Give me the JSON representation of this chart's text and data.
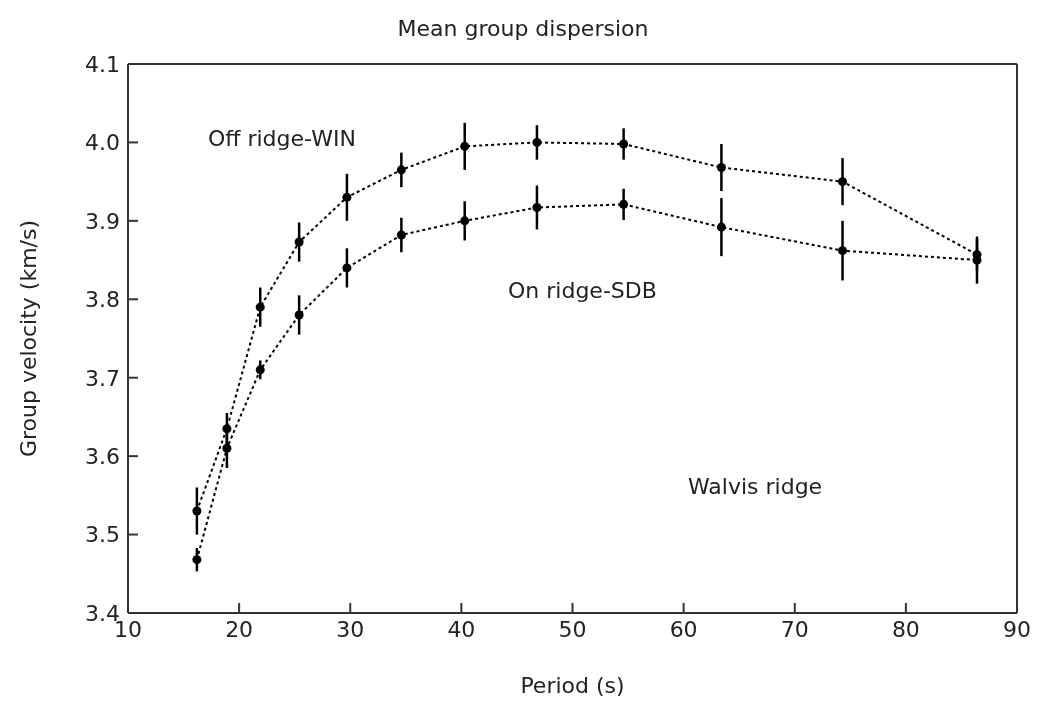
{
  "chart_data": {
    "type": "line",
    "title": "Mean group dispersion",
    "xlabel": "Period (s)",
    "ylabel": "Group velocity (km/s)",
    "xlim": [
      10,
      90
    ],
    "xticks": [
      10,
      20,
      30,
      40,
      50,
      60,
      70,
      80,
      90
    ],
    "ylim": [
      3.4,
      4.1
    ],
    "yticks": [
      3.4,
      3.5,
      3.6,
      3.7,
      3.8,
      3.9,
      {
        "value": 4,
        "label": "4.0"
      },
      4.1
    ],
    "grid": false,
    "legend": false,
    "marker": "circle",
    "line_style": "dotted",
    "series": [
      {
        "color": "#000000",
        "x": [
          16.2,
          18.9,
          21.9,
          25.4,
          29.7,
          34.6,
          40.3,
          46.8,
          54.6,
          63.4,
          74.3,
          86.4
        ],
        "values": [
          3.53,
          3.635,
          3.79,
          3.873,
          3.93,
          3.965,
          3.995,
          4.0,
          3.998,
          3.968,
          3.95,
          3.857
        ],
        "errors": [
          0.03,
          0.02,
          0.025,
          0.025,
          0.03,
          0.022,
          0.03,
          0.022,
          0.02,
          0.03,
          0.03,
          0.02
        ]
      },
      {
        "color": "#000000",
        "x": [
          16.2,
          18.9,
          21.9,
          25.4,
          29.7,
          34.6,
          40.3,
          46.8,
          54.6,
          63.4,
          74.3,
          86.4
        ],
        "values": [
          3.468,
          3.61,
          3.71,
          3.78,
          3.84,
          3.882,
          3.9,
          3.917,
          3.921,
          3.892,
          3.862,
          3.85
        ],
        "errors": [
          0.015,
          0.025,
          0.012,
          0.025,
          0.025,
          0.022,
          0.025,
          0.028,
          0.02,
          0.037,
          0.038,
          0.03
        ]
      }
    ],
    "annotations": [
      "Off ridge-WIN",
      "On ridge-SDB",
      "Walvis ridge"
    ]
  }
}
